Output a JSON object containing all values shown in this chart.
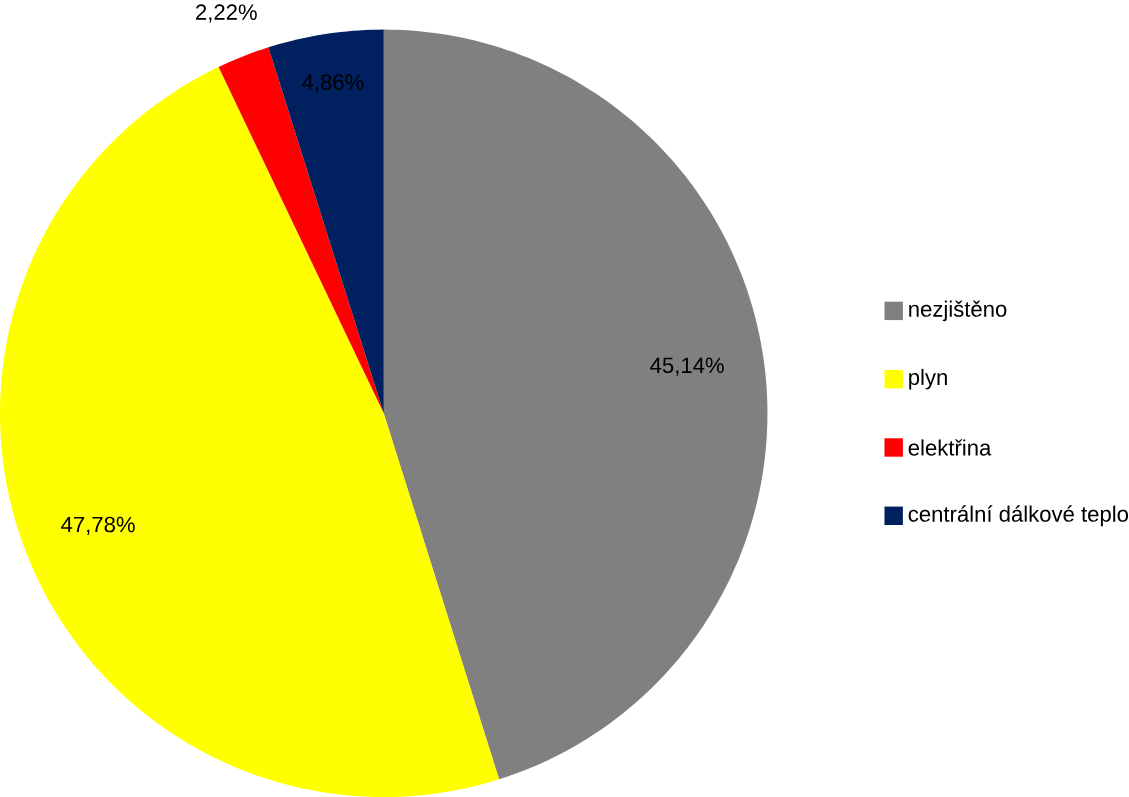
{
  "chart_data": {
    "type": "pie",
    "categories": [
      "nezjištěno",
      "plyn",
      "elektřina",
      "centrální dálkové teplo"
    ],
    "values": [
      45.14,
      47.78,
      2.22,
      4.86
    ],
    "colors": [
      "#808080",
      "#ffff00",
      "#ff0000",
      "#002060"
    ],
    "value_labels": [
      "45,14%",
      "47,78%",
      "2,22%",
      "4,86%"
    ],
    "legend": "right"
  }
}
